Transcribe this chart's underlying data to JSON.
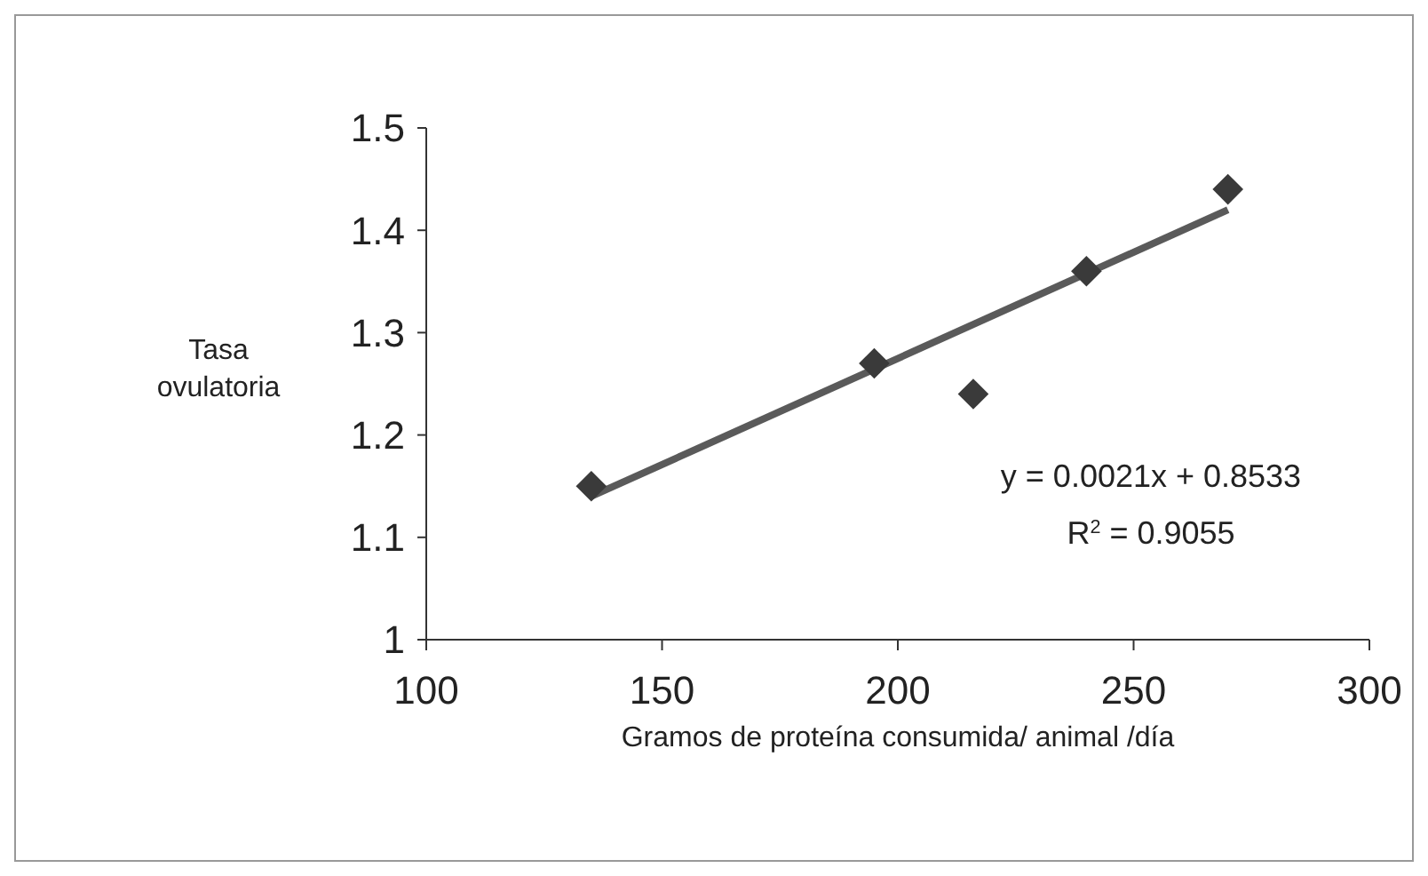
{
  "chart_data": {
    "type": "scatter",
    "xlabel": "Gramos de proteína consumida/ animal /día",
    "ylabel": "Tasa ovulatoria",
    "xlim": [
      100,
      300
    ],
    "xticks": [
      100,
      150,
      200,
      250,
      300
    ],
    "ylim": [
      1,
      1.5
    ],
    "yticks": [
      1,
      1.1,
      1.2,
      1.3,
      1.4,
      1.5
    ],
    "grid": false,
    "series": [
      {
        "marker": "diamond",
        "color": "#3a3a3a",
        "x": [
          135,
          195,
          216,
          240,
          270
        ],
        "values": [
          1.15,
          1.27,
          1.24,
          1.36,
          1.44
        ]
      },
      {
        "type": "line",
        "color": "#5a5a5a",
        "x": [
          135,
          270
        ],
        "values": [
          1.14,
          1.42
        ],
        "line_style": "solid"
      }
    ],
    "annotations": [
      "y = 0.0021x + 0.8533",
      "R$^{2}$ = 0.9055"
    ]
  }
}
